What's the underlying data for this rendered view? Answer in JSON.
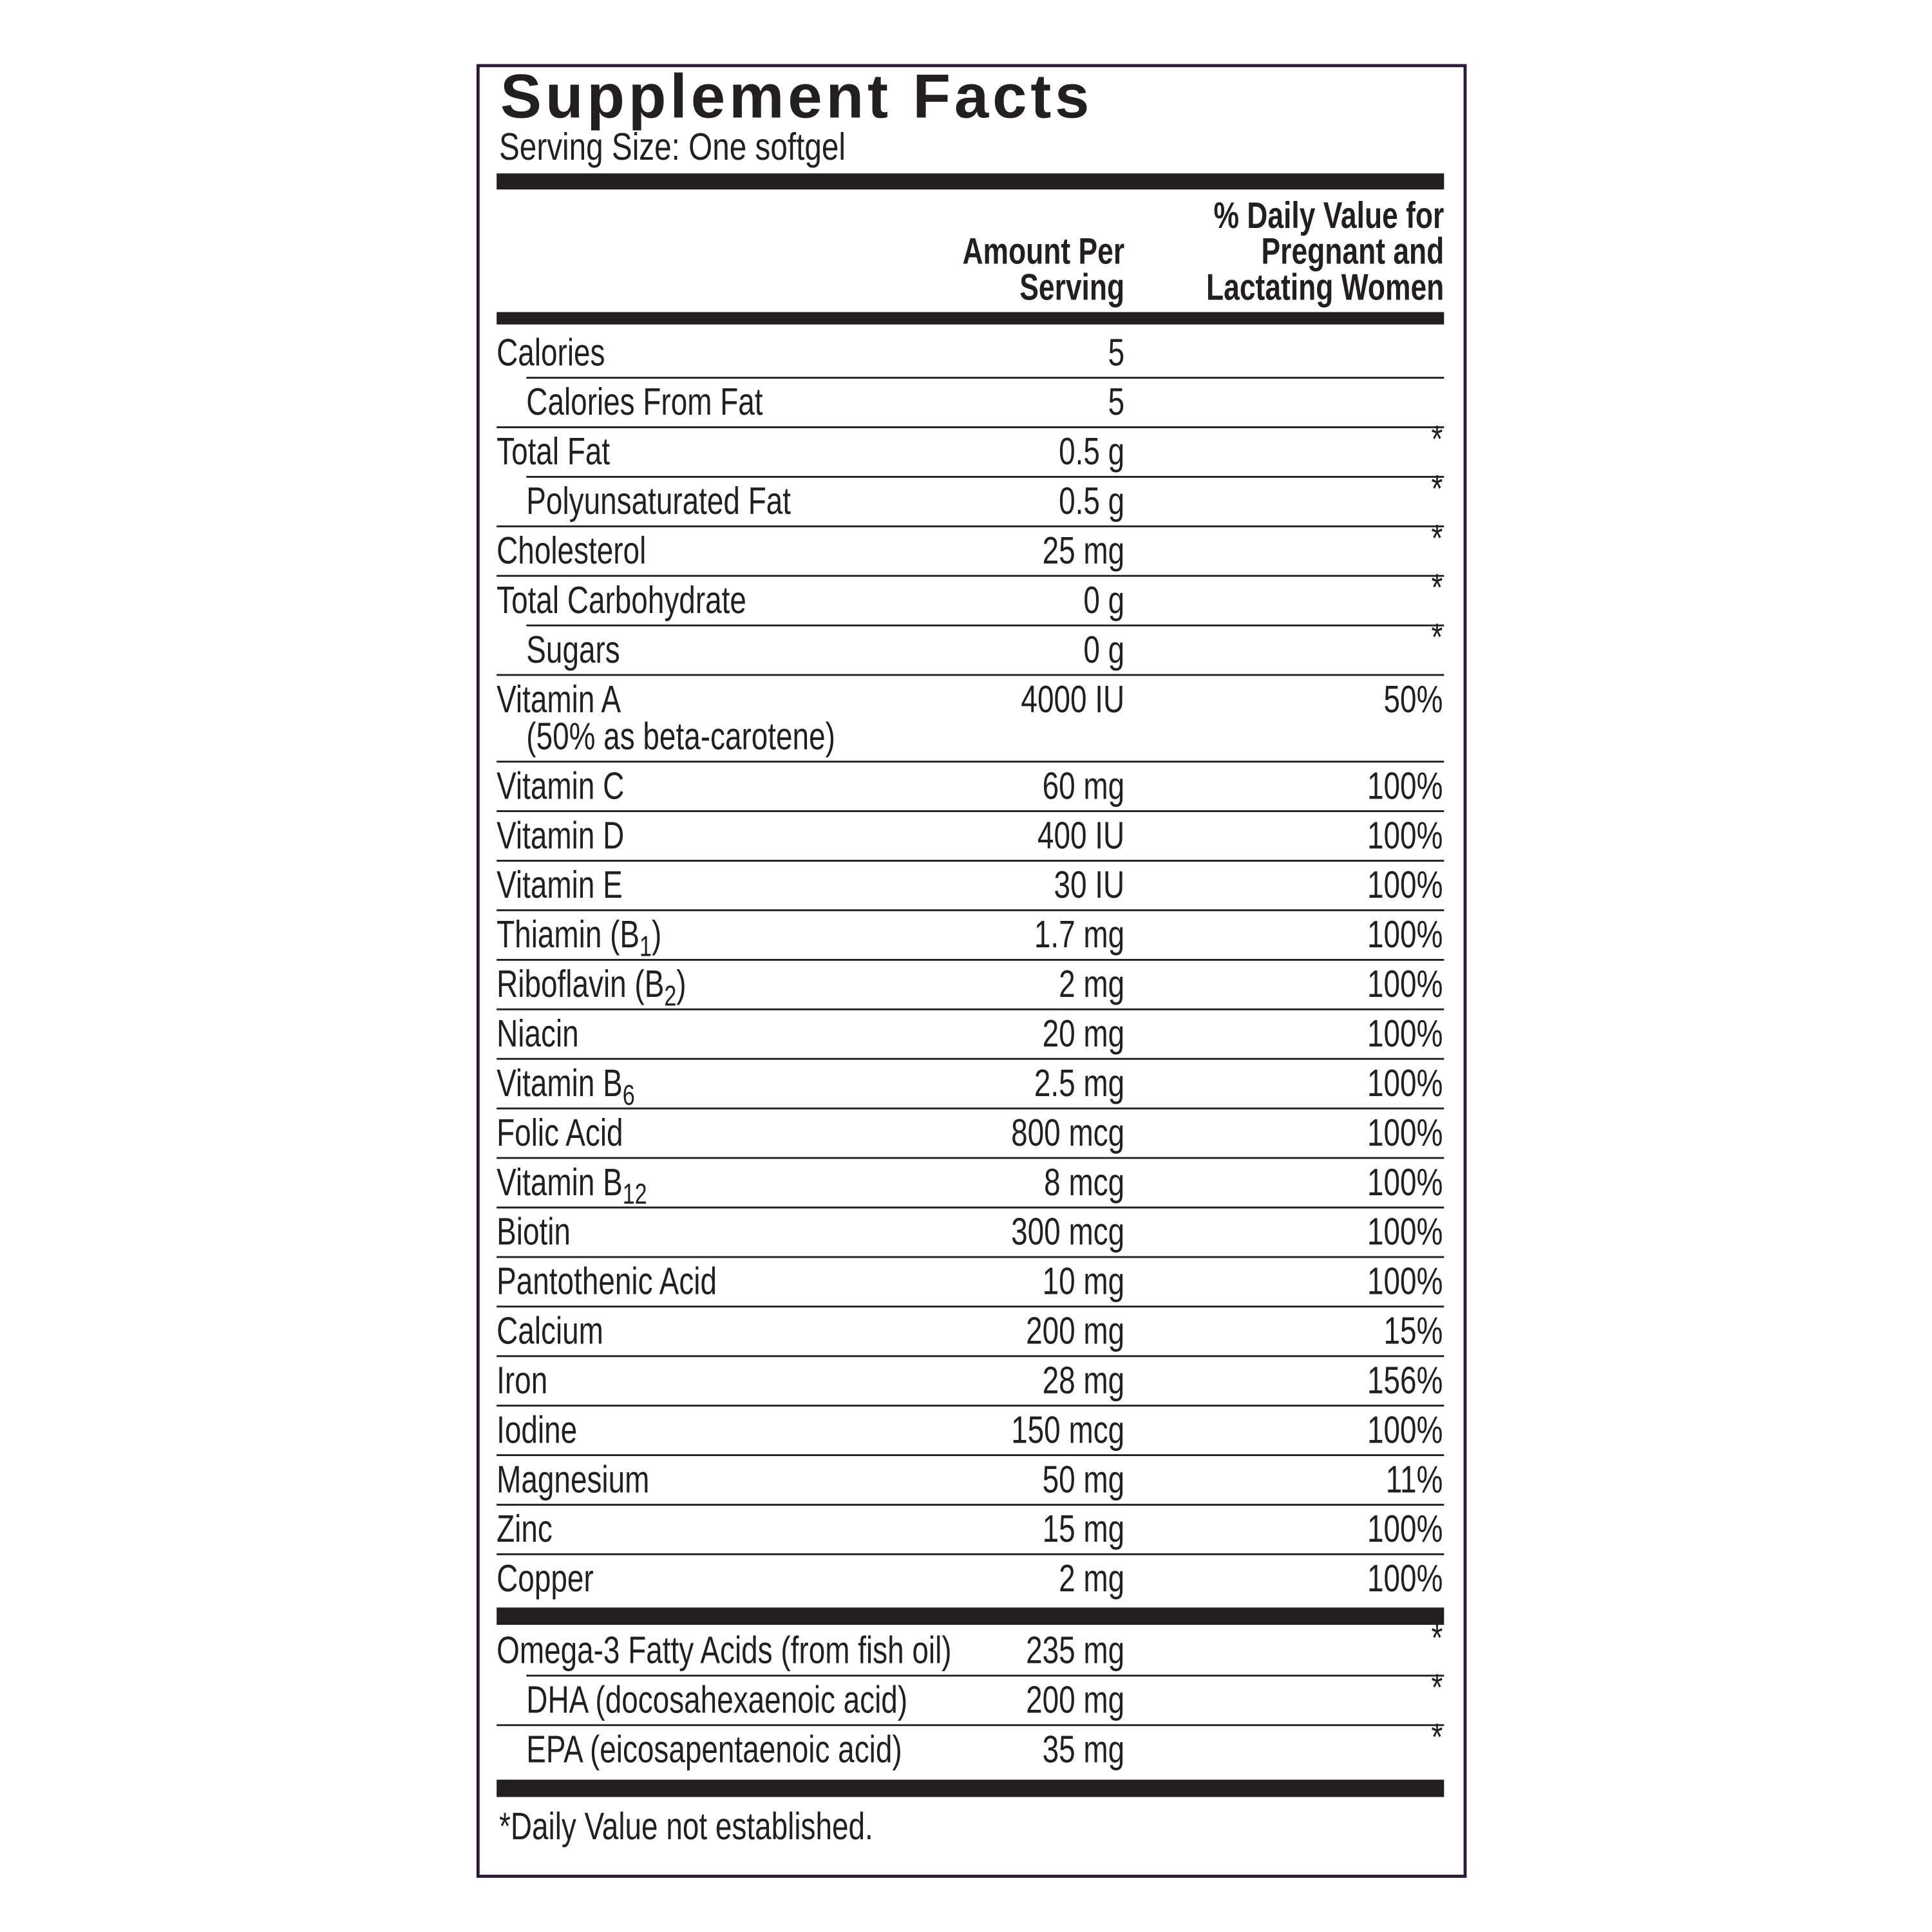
{
  "title": "Supplement Facts",
  "serving_size": "Serving Size: One softgel",
  "header": {
    "amount": [
      "Amount Per",
      "Serving"
    ],
    "daily_value": [
      "% Daily Value for",
      "Pregnant and",
      "Lactating Women"
    ]
  },
  "rows": [
    {
      "name": "Calories",
      "amount": "5"
    },
    {
      "name": "Calories From Fat",
      "amount": "5",
      "indent": true
    },
    {
      "name": "Total Fat",
      "amount": "0.5 g",
      "dv": "*"
    },
    {
      "name": "Polyunsaturated Fat",
      "amount": "0.5 g",
      "dv": "*",
      "indent": true
    },
    {
      "name": "Cholesterol",
      "amount": "25 mg",
      "dv": "*"
    },
    {
      "name": "Total Carbohydrate",
      "amount": "0 g",
      "dv": "*"
    },
    {
      "name": "Sugars",
      "amount": "0 g",
      "dv": "*",
      "indent": true
    },
    {
      "name": "Vitamin A",
      "note": "(50% as beta-carotene)",
      "amount": "4000 IU",
      "dv": "50%"
    },
    {
      "name": "Vitamin C",
      "amount": "60 mg",
      "dv": "100%"
    },
    {
      "name": "Vitamin D",
      "amount": "400 IU",
      "dv": "100%"
    },
    {
      "name": "Vitamin E",
      "amount": "30 IU",
      "dv": "100%"
    },
    {
      "name": [
        "Thiamin (B",
        "1",
        ")"
      ],
      "amount": "1.7 mg",
      "dv": "100%"
    },
    {
      "name": [
        "Riboflavin (B",
        "2",
        ")"
      ],
      "amount": "2 mg",
      "dv": "100%"
    },
    {
      "name": "Niacin",
      "amount": "20 mg",
      "dv": "100%"
    },
    {
      "name": [
        "Vitamin B",
        "6"
      ],
      "amount": "2.5 mg",
      "dv": "100%"
    },
    {
      "name": "Folic Acid",
      "amount": "800 mcg",
      "dv": "100%"
    },
    {
      "name": [
        "Vitamin B",
        "12"
      ],
      "amount": "8 mcg",
      "dv": "100%"
    },
    {
      "name": "Biotin",
      "amount": "300 mcg",
      "dv": "100%"
    },
    {
      "name": "Pantothenic Acid",
      "amount": "10 mg",
      "dv": "100%"
    },
    {
      "name": "Calcium",
      "amount": "200 mg",
      "dv": "15%"
    },
    {
      "name": "Iron",
      "amount": "28 mg",
      "dv": "156%"
    },
    {
      "name": "Iodine",
      "amount": "150 mcg",
      "dv": "100%"
    },
    {
      "name": "Magnesium",
      "amount": "50 mg",
      "dv": "11%"
    },
    {
      "name": "Zinc",
      "amount": "15 mg",
      "dv": "100%"
    },
    {
      "name": "Copper",
      "amount": "2 mg",
      "dv": "100%"
    }
  ],
  "rows2": [
    {
      "name": "Omega-3 Fatty Acids (from fish oil)",
      "amount": "235 mg",
      "dv": "*"
    },
    {
      "name": "DHA (docosahexaenoic acid)",
      "amount": "200 mg",
      "dv": "*",
      "indent": true
    },
    {
      "name": "EPA (eicosapentaenoic acid)",
      "amount": "35 mg",
      "dv": "*",
      "indent": true
    }
  ],
  "footnote": "*Daily Value not established."
}
